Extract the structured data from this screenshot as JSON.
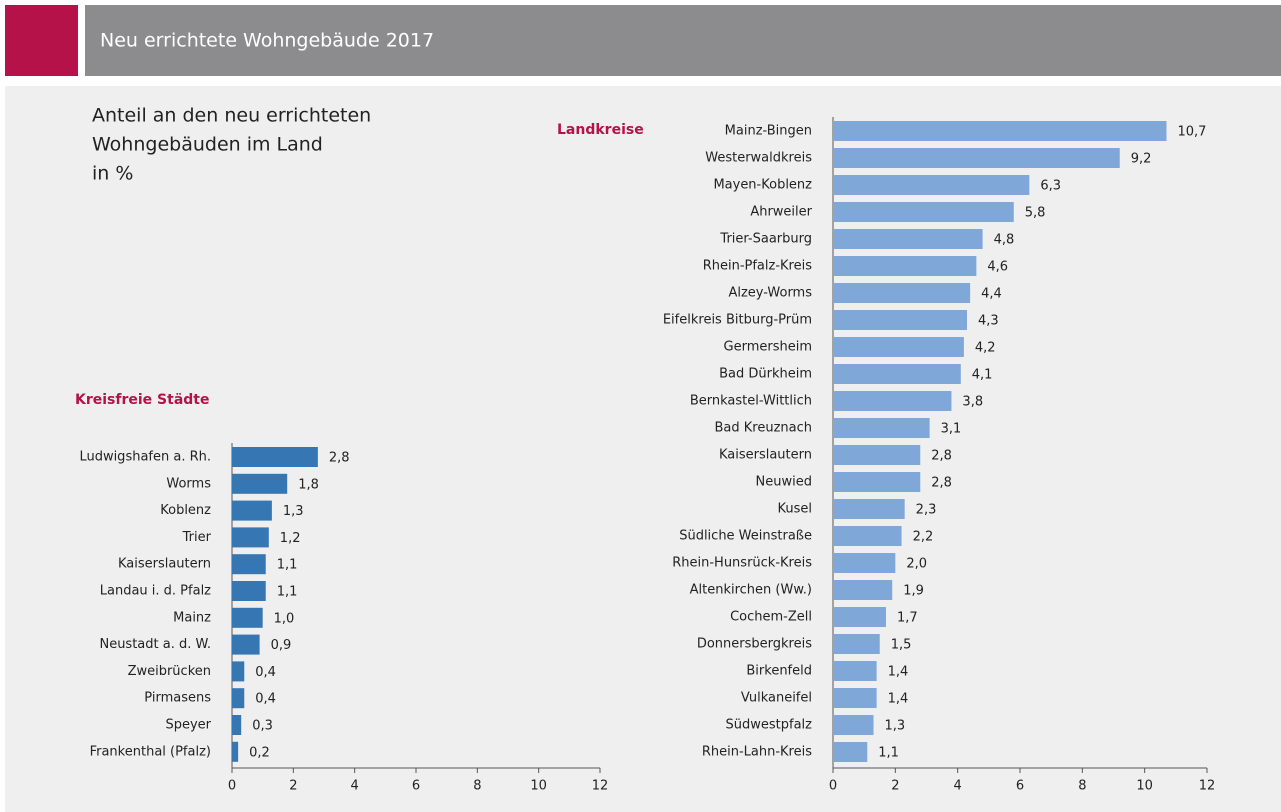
{
  "header": {
    "title": "Neu errichtete Wohngebäude 2017"
  },
  "subtitle": [
    "Anteil an den neu errichteten",
    "Wohngebäuden im Land",
    "in %"
  ],
  "chart_data": [
    {
      "type": "bar",
      "orientation": "horizontal",
      "title": "Kreisfreie Städte",
      "color": "#3676b2",
      "categories": [
        "Ludwigshafen a. Rh.",
        "Worms",
        "Koblenz",
        "Trier",
        "Kaiserslautern",
        "Landau i. d. Pfalz",
        "Mainz",
        "Neustadt a. d. W.",
        "Zweibrücken",
        "Pirmasens",
        "Speyer",
        "Frankenthal (Pfalz)"
      ],
      "values": [
        2.8,
        1.8,
        1.3,
        1.2,
        1.1,
        1.1,
        1.0,
        0.9,
        0.4,
        0.4,
        0.3,
        0.2
      ],
      "value_labels": [
        "2,8",
        "1,8",
        "1,3",
        "1,2",
        "1,1",
        "1,1",
        "1,0",
        "0,9",
        "0,4",
        "0,4",
        "0,3",
        "0,2"
      ],
      "xlim": [
        0,
        12
      ],
      "xticks": [
        0,
        2,
        4,
        6,
        8,
        10,
        12
      ]
    },
    {
      "type": "bar",
      "orientation": "horizontal",
      "title": "Landkreise",
      "color": "#7fa8d9",
      "categories": [
        "Mainz-Bingen",
        "Westerwaldkreis",
        "Mayen-Koblenz",
        "Ahrweiler",
        "Trier-Saarburg",
        "Rhein-Pfalz-Kreis",
        "Alzey-Worms",
        "Eifelkreis Bitburg-Prüm",
        "Germersheim",
        "Bad Dürkheim",
        "Bernkastel-Wittlich",
        "Bad Kreuznach",
        "Kaiserslautern",
        "Neuwied",
        "Kusel",
        "Südliche Weinstraße",
        "Rhein-Hunsrück-Kreis",
        "Altenkirchen (Ww.)",
        "Cochem-Zell",
        "Donnersbergkreis",
        "Birkenfeld",
        "Vulkaneifel",
        "Südwestpfalz",
        "Rhein-Lahn-Kreis"
      ],
      "values": [
        10.7,
        9.2,
        6.3,
        5.8,
        4.8,
        4.6,
        4.4,
        4.3,
        4.2,
        4.1,
        3.8,
        3.1,
        2.8,
        2.8,
        2.3,
        2.2,
        2.0,
        1.9,
        1.7,
        1.5,
        1.4,
        1.4,
        1.3,
        1.1
      ],
      "value_labels": [
        "10,7",
        "9,2",
        "6,3",
        "5,8",
        "4,8",
        "4,6",
        "4,4",
        "4,3",
        "4,2",
        "4,1",
        "3,8",
        "3,1",
        "2,8",
        "2,8",
        "2,3",
        "2,2",
        "2,0",
        "1,9",
        "1,7",
        "1,5",
        "1,4",
        "1,4",
        "1,3",
        "1,1"
      ],
      "xlim": [
        0,
        12
      ],
      "xticks": [
        0,
        2,
        4,
        6,
        8,
        10,
        12
      ]
    }
  ]
}
